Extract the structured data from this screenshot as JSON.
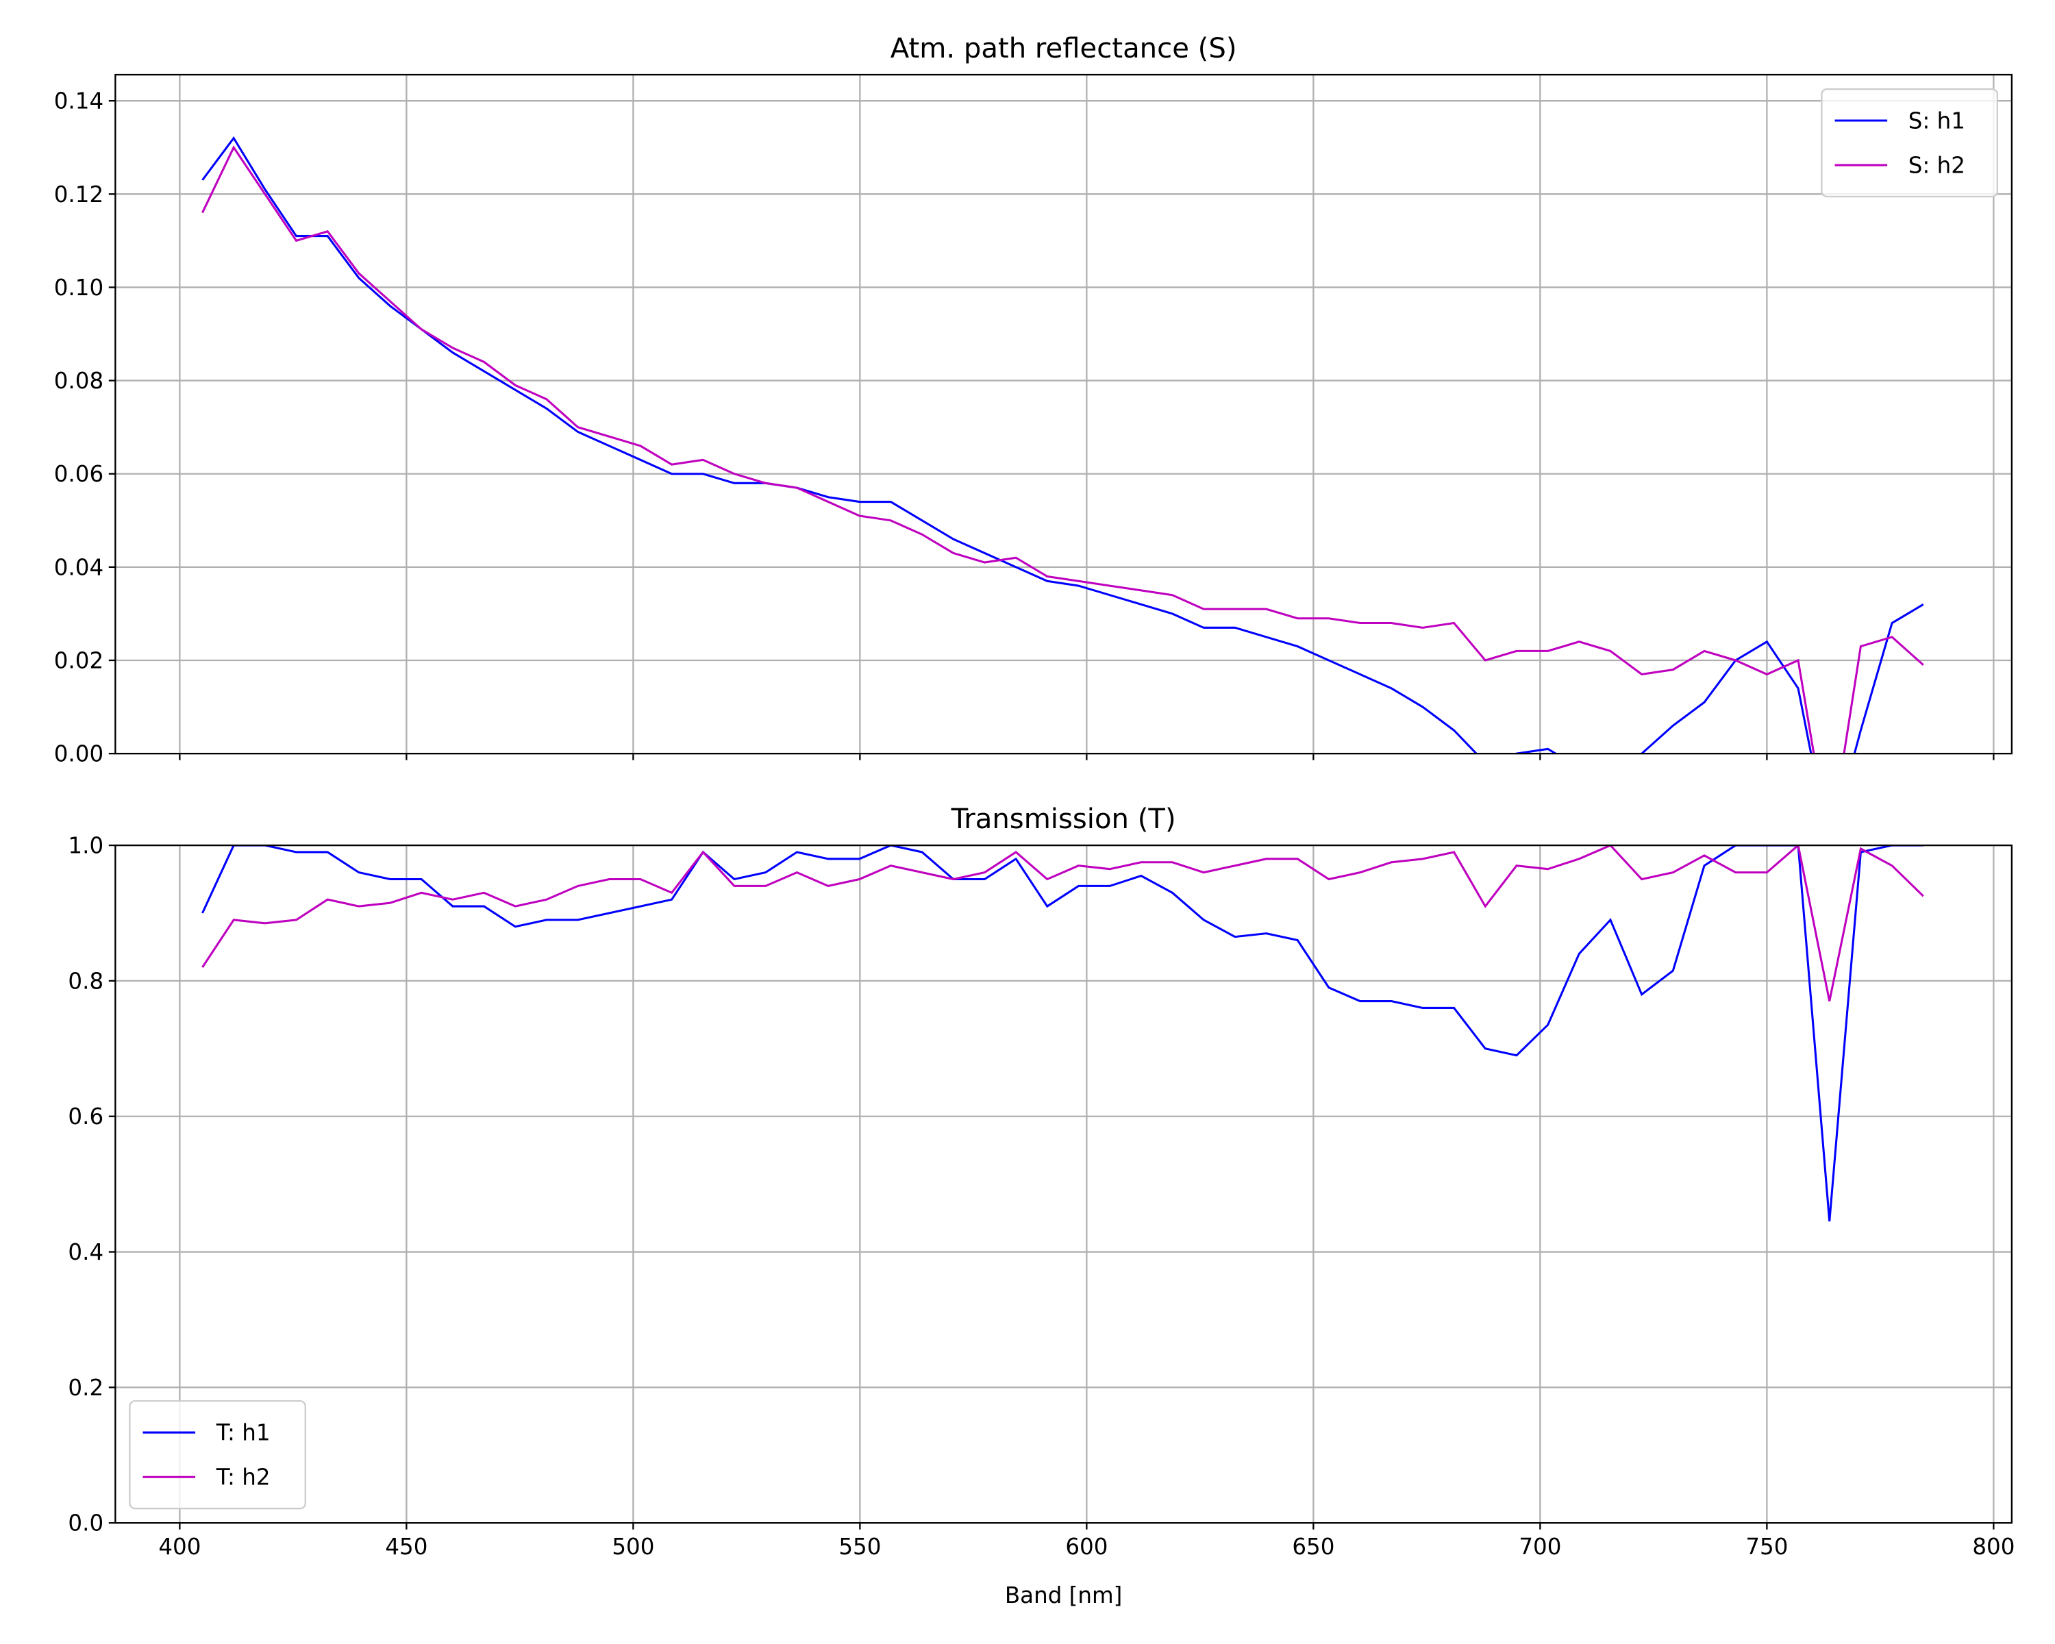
{
  "chart_data": [
    {
      "type": "line",
      "title": "Atm. path reflectance (S)",
      "legend": "upper right",
      "grid": true,
      "show_xtick_labels": false,
      "x": [
        405,
        411.9,
        418.8,
        425.7,
        432.6,
        439.5,
        446.4,
        453.3,
        460.2,
        467.1,
        474,
        480.9,
        487.8,
        494.7,
        501.6,
        508.5,
        515.4,
        522.3,
        529.2,
        536.1,
        543,
        549.9,
        556.8,
        563.7,
        570.6,
        577.5,
        584.4,
        591.3,
        598.2,
        605.1,
        612,
        618.9,
        625.8,
        632.7,
        639.6,
        646.5,
        653.4,
        660.3,
        667.2,
        674.1,
        681,
        687.9,
        694.8,
        701.7,
        708.6,
        715.5,
        722.4,
        729.3,
        736.2,
        743.1,
        750,
        756.9,
        763.8,
        770.7,
        777.6,
        784.5
      ],
      "series": [
        {
          "name": "S: h1",
          "color": "#0000ff",
          "values": [
            0.123,
            0.132,
            0.121,
            0.111,
            0.111,
            0.102,
            0.096,
            0.091,
            0.086,
            0.082,
            0.078,
            0.074,
            0.069,
            0.066,
            0.063,
            0.06,
            0.06,
            0.058,
            0.058,
            0.057,
            0.055,
            0.054,
            0.054,
            0.05,
            0.046,
            0.043,
            0.04,
            0.037,
            0.036,
            0.034,
            0.032,
            0.03,
            0.027,
            0.027,
            0.025,
            0.023,
            0.02,
            0.017,
            0.014,
            0.01,
            0.005,
            -0.002,
            0.0,
            0.001,
            -0.003,
            -0.003,
            0.0,
            0.006,
            0.011,
            0.02,
            0.024,
            0.014,
            -0.02,
            0.005,
            0.028,
            0.032
          ]
        },
        {
          "name": "S: h2",
          "color": "#bf00bf",
          "values": [
            0.116,
            0.13,
            0.12,
            0.11,
            0.112,
            0.103,
            0.097,
            0.091,
            0.087,
            0.084,
            0.079,
            0.076,
            0.07,
            0.068,
            0.066,
            0.062,
            0.063,
            0.06,
            0.058,
            0.057,
            0.054,
            0.051,
            0.05,
            0.047,
            0.043,
            0.041,
            0.042,
            0.038,
            0.037,
            0.036,
            0.035,
            0.034,
            0.031,
            0.031,
            0.031,
            0.029,
            0.029,
            0.028,
            0.028,
            0.027,
            0.028,
            0.02,
            0.022,
            0.022,
            0.024,
            0.022,
            0.017,
            0.018,
            0.022,
            0.02,
            0.017,
            0.02,
            -0.02,
            0.023,
            0.025,
            0.019
          ]
        }
      ],
      "xlim": [
        385.8,
        804
      ],
      "xticks": [
        400,
        450,
        500,
        550,
        600,
        650,
        700,
        750,
        800
      ],
      "ylim": [
        0,
        0.1456
      ],
      "yticks": [
        {
          "value": 0,
          "label": "0.00"
        },
        {
          "value": 0.02,
          "label": "0.02"
        },
        {
          "value": 0.04,
          "label": "0.04"
        },
        {
          "value": 0.06,
          "label": "0.06"
        },
        {
          "value": 0.08,
          "label": "0.08"
        },
        {
          "value": 0.1,
          "label": "0.10"
        },
        {
          "value": 0.12,
          "label": "0.12"
        },
        {
          "value": 0.14,
          "label": "0.14"
        }
      ]
    },
    {
      "type": "line",
      "title": "Transmission (T)",
      "xlabel": "Band [nm]",
      "legend": "lower left",
      "grid": true,
      "show_xtick_labels": true,
      "x": [
        405,
        411.9,
        418.8,
        425.7,
        432.6,
        439.5,
        446.4,
        453.3,
        460.2,
        467.1,
        474,
        480.9,
        487.8,
        494.7,
        501.6,
        508.5,
        515.4,
        522.3,
        529.2,
        536.1,
        543,
        549.9,
        556.8,
        563.7,
        570.6,
        577.5,
        584.4,
        591.3,
        598.2,
        605.1,
        612,
        618.9,
        625.8,
        632.7,
        639.6,
        646.5,
        653.4,
        660.3,
        667.2,
        674.1,
        681,
        687.9,
        694.8,
        701.7,
        708.6,
        715.5,
        722.4,
        729.3,
        736.2,
        743.1,
        750,
        756.9,
        763.8,
        770.7,
        777.6,
        784.5
      ],
      "series": [
        {
          "name": "T: h1",
          "color": "#0000ff",
          "values": [
            0.9,
            1.0,
            1.0,
            0.99,
            0.99,
            0.96,
            0.95,
            0.95,
            0.91,
            0.91,
            0.88,
            0.89,
            0.89,
            0.9,
            0.91,
            0.92,
            0.99,
            0.95,
            0.96,
            0.99,
            0.98,
            0.98,
            1.0,
            0.99,
            0.95,
            0.95,
            0.98,
            0.91,
            0.94,
            0.94,
            0.955,
            0.93,
            0.89,
            0.865,
            0.87,
            0.86,
            0.79,
            0.77,
            0.77,
            0.76,
            0.76,
            0.7,
            0.69,
            0.735,
            0.84,
            0.89,
            0.78,
            0.815,
            0.97,
            1.0,
            1.0,
            1.0,
            0.445,
            0.99,
            1.0,
            1.0
          ]
        },
        {
          "name": "T: h2",
          "color": "#bf00bf",
          "values": [
            0.82,
            0.89,
            0.885,
            0.89,
            0.92,
            0.91,
            0.915,
            0.93,
            0.92,
            0.93,
            0.91,
            0.92,
            0.94,
            0.95,
            0.95,
            0.93,
            0.99,
            0.94,
            0.94,
            0.96,
            0.94,
            0.95,
            0.97,
            0.96,
            0.95,
            0.96,
            0.99,
            0.95,
            0.97,
            0.965,
            0.975,
            0.975,
            0.96,
            0.97,
            0.98,
            0.98,
            0.95,
            0.96,
            0.975,
            0.98,
            0.99,
            0.91,
            0.97,
            0.965,
            0.98,
            1.0,
            0.95,
            0.96,
            0.985,
            0.96,
            0.96,
            1.0,
            0.77,
            0.995,
            0.97,
            0.925
          ]
        }
      ],
      "xlim": [
        385.8,
        804
      ],
      "xticks": [
        400,
        450,
        500,
        550,
        600,
        650,
        700,
        750,
        800
      ],
      "ylim": [
        0,
        1
      ],
      "yticks": [
        {
          "value": 0,
          "label": "0.0"
        },
        {
          "value": 0.2,
          "label": "0.2"
        },
        {
          "value": 0.4,
          "label": "0.4"
        },
        {
          "value": 0.6,
          "label": "0.6"
        },
        {
          "value": 0.8,
          "label": "0.8"
        },
        {
          "value": 1,
          "label": "1.0"
        }
      ]
    }
  ]
}
